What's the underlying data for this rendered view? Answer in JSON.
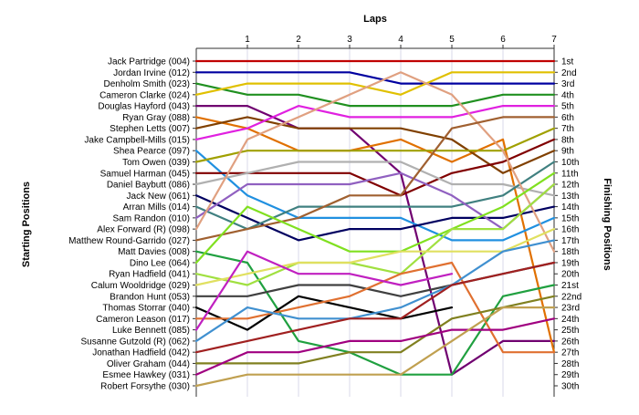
{
  "chart_data": {
    "type": "line",
    "title": "",
    "xlabel": "Laps",
    "ylabel_left": "Starting Positions",
    "ylabel_right": "Finishing Positions",
    "x_ticks": [
      "1",
      "2",
      "3",
      "4",
      "5",
      "6",
      "7"
    ],
    "y_range": [
      1,
      30
    ],
    "grid": true,
    "drivers": [
      "Jack Partridge (004)",
      "Jordan Irvine (012)",
      "Denholm Smith (023)",
      "Cameron Clarke (024)",
      "Douglas Hayford (043)",
      "Ryan Gray (088)",
      "Stephen Letts (007)",
      "Jake Campbell-Mills (015)",
      "Shea Pearce (097)",
      "Tom Owen (039)",
      "Samuel Harman (045)",
      "Daniel Baybutt (086)",
      "Jack New (061)",
      "Arran Mills (014)",
      "Sam Randon (010)",
      "Alex Forward  (R) (098)",
      "Matthew Round-Garrido (027)",
      "Matt Davies (008)",
      "Dino Lee (064)",
      "Ryan Hadfield (041)",
      "Calum Wooldridge (029)",
      "Brandon Hunt (053)",
      "Thomas Storrar (040)",
      "Cameron Leason (017)",
      "Luke Bennett (085)",
      "Susanne Gutzold (R) (062)",
      "Jonathan Hadfield (042)",
      "Oliver Graham (044)",
      "Esmee Hawkey (031)",
      "Robert Forsythe (030)"
    ],
    "finishing_labels": [
      "1st",
      "2nd",
      "3rd",
      "4th",
      "5th",
      "6th",
      "7th",
      "8th",
      "9th",
      "10th",
      "11th",
      "12th",
      "13th",
      "14th",
      "15th",
      "16th",
      "17th",
      "18th",
      "19th",
      "20th",
      "21st",
      "22nd",
      "23rd",
      "24th",
      "25th",
      "26th",
      "27th",
      "28th",
      "29th",
      "30th"
    ],
    "series": [
      {
        "color": "#c00000",
        "values": [
          1,
          1,
          1,
          1,
          1,
          1,
          1,
          1
        ]
      },
      {
        "color": "#0000a0",
        "values": [
          2,
          2,
          2,
          2,
          3,
          3,
          3,
          3
        ]
      },
      {
        "color": "#209020",
        "values": [
          3,
          4,
          4,
          5,
          5,
          5,
          4,
          4
        ]
      },
      {
        "color": "#e0c000",
        "values": [
          4,
          3,
          3,
          3,
          4,
          2,
          2,
          2
        ]
      },
      {
        "color": "#700070",
        "values": [
          5,
          5,
          7,
          7,
          11,
          29,
          26,
          26
        ]
      },
      {
        "color": "#e07000",
        "values": [
          6,
          7,
          9,
          9,
          8,
          10,
          8,
          27
        ]
      },
      {
        "color": "#804000",
        "values": [
          7,
          6,
          7,
          7,
          7,
          8,
          11,
          9
        ]
      },
      {
        "color": "#e020e0",
        "values": [
          8,
          7,
          5,
          6,
          6,
          6,
          5,
          5
        ]
      },
      {
        "color": "#2090e0",
        "values": [
          9,
          13,
          15,
          15,
          15,
          17,
          17,
          15
        ]
      },
      {
        "color": "#a0a000",
        "values": [
          10,
          9,
          9,
          9,
          9,
          9,
          9,
          7
        ]
      },
      {
        "color": "#800000",
        "values": [
          11,
          11,
          11,
          11,
          13,
          11,
          10,
          8
        ]
      },
      {
        "color": "#b0b0b0",
        "values": [
          12,
          11,
          10,
          10,
          10,
          12,
          12,
          13
        ]
      },
      {
        "color": "#000060",
        "values": [
          13,
          15,
          17,
          16,
          16,
          15,
          15,
          14
        ]
      },
      {
        "color": "#408080",
        "values": [
          14,
          16,
          14,
          14,
          14,
          14,
          13,
          10
        ]
      },
      {
        "color": "#9060c0",
        "values": [
          15,
          12,
          12,
          12,
          11,
          13,
          16,
          12
        ]
      },
      {
        "color": "#e0a080",
        "values": [
          16,
          8,
          6,
          4,
          2,
          4,
          9,
          18
        ]
      },
      {
        "color": "#a06030",
        "values": [
          17,
          16,
          15,
          13,
          13,
          7,
          6,
          6
        ]
      },
      {
        "color": "#20a040",
        "values": [
          18,
          19,
          26,
          27,
          29,
          29,
          22,
          21
        ]
      },
      {
        "color": "#80e020",
        "values": [
          19,
          14,
          16,
          18,
          18,
          16,
          14,
          11
        ]
      },
      {
        "color": "#a0e040",
        "values": [
          20,
          21,
          19,
          19,
          20,
          16,
          16,
          12
        ]
      },
      {
        "color": "#e0e060",
        "values": [
          21,
          20,
          19,
          19,
          18,
          18,
          18,
          16
        ]
      },
      {
        "color": "#404040",
        "values": [
          22,
          22,
          21,
          21,
          22,
          21,
          20,
          19
        ]
      },
      {
        "color": "#000000",
        "values": [
          23,
          25,
          22,
          23,
          24,
          23,
          null,
          null
        ]
      },
      {
        "color": "#e07030",
        "values": [
          24,
          24,
          23,
          22,
          20,
          19,
          27,
          27
        ]
      },
      {
        "color": "#c020c0",
        "values": [
          25,
          18,
          20,
          20,
          21,
          20,
          null,
          null
        ]
      },
      {
        "color": "#4090d0",
        "values": [
          26,
          23,
          24,
          24,
          23,
          21,
          18,
          17
        ]
      },
      {
        "color": "#a02020",
        "values": [
          27,
          26,
          25,
          24,
          24,
          21,
          20,
          19
        ]
      },
      {
        "color": "#808020",
        "values": [
          28,
          28,
          28,
          27,
          27,
          24,
          23,
          22
        ]
      },
      {
        "color": "#a00080",
        "values": [
          29,
          27,
          27,
          26,
          26,
          25,
          25,
          24
        ]
      },
      {
        "color": "#c0a050",
        "values": [
          30,
          29,
          29,
          29,
          29,
          26,
          23,
          23
        ]
      }
    ]
  }
}
